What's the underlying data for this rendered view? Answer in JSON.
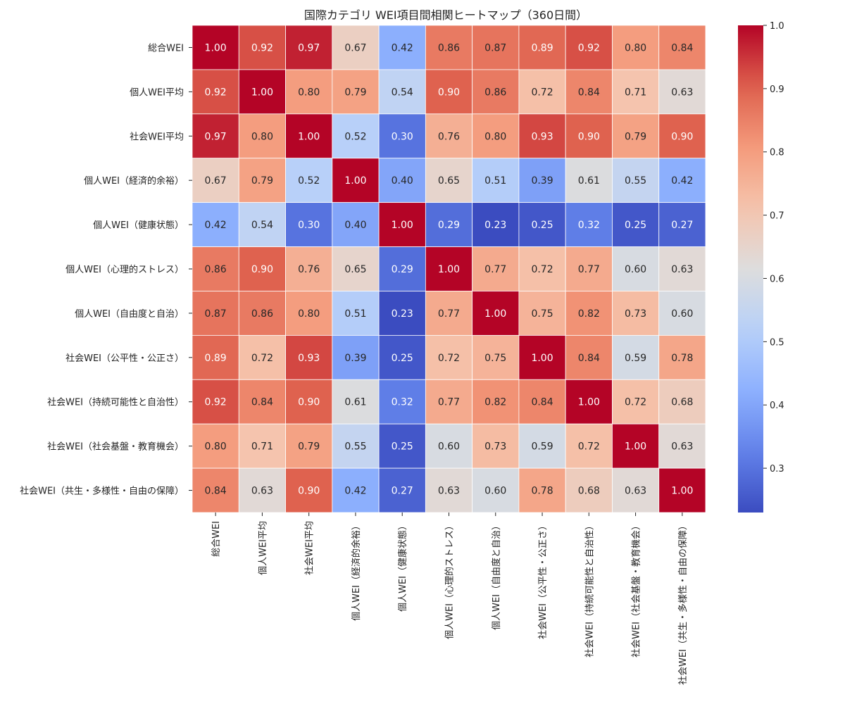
{
  "chart_data": {
    "type": "heatmap",
    "title": "国際カテゴリ WEI項目間相関ヒートマップ（360日間）",
    "labels": [
      "総合WEI",
      "個人WEI平均",
      "社会WEI平均",
      "個人WEI（経済的余裕）",
      "個人WEI（健康状態）",
      "個人WEI（心理的ストレス）",
      "個人WEI（自由度と自治）",
      "社会WEI（公平性・公正さ）",
      "社会WEI（持続可能性と自治性）",
      "社会WEI（社会基盤・教育機会）",
      "社会WEI（共生・多様性・自由の保障）"
    ],
    "matrix": [
      [
        1.0,
        0.92,
        0.97,
        0.67,
        0.42,
        0.86,
        0.87,
        0.89,
        0.92,
        0.8,
        0.84
      ],
      [
        0.92,
        1.0,
        0.8,
        0.79,
        0.54,
        0.9,
        0.86,
        0.72,
        0.84,
        0.71,
        0.63
      ],
      [
        0.97,
        0.8,
        1.0,
        0.52,
        0.3,
        0.76,
        0.8,
        0.93,
        0.9,
        0.79,
        0.9
      ],
      [
        0.67,
        0.79,
        0.52,
        1.0,
        0.4,
        0.65,
        0.51,
        0.39,
        0.61,
        0.55,
        0.42
      ],
      [
        0.42,
        0.54,
        0.3,
        0.4,
        1.0,
        0.29,
        0.23,
        0.25,
        0.32,
        0.25,
        0.27
      ],
      [
        0.86,
        0.9,
        0.76,
        0.65,
        0.29,
        1.0,
        0.77,
        0.72,
        0.77,
        0.6,
        0.63
      ],
      [
        0.87,
        0.86,
        0.8,
        0.51,
        0.23,
        0.77,
        1.0,
        0.75,
        0.82,
        0.73,
        0.6
      ],
      [
        0.89,
        0.72,
        0.93,
        0.39,
        0.25,
        0.72,
        0.75,
        1.0,
        0.84,
        0.59,
        0.78
      ],
      [
        0.92,
        0.84,
        0.9,
        0.61,
        0.32,
        0.77,
        0.82,
        0.84,
        1.0,
        0.72,
        0.68
      ],
      [
        0.8,
        0.71,
        0.79,
        0.55,
        0.25,
        0.6,
        0.73,
        0.59,
        0.72,
        1.0,
        0.63
      ],
      [
        0.84,
        0.63,
        0.9,
        0.42,
        0.27,
        0.63,
        0.6,
        0.78,
        0.68,
        0.63,
        1.0
      ]
    ],
    "colormap": "coolwarm",
    "vmin": 0.23,
    "vmax": 1.0,
    "colorbar_ticks": [
      "0.3",
      "0.4",
      "0.5",
      "0.6",
      "0.7",
      "0.8",
      "0.9",
      "1.0"
    ]
  }
}
